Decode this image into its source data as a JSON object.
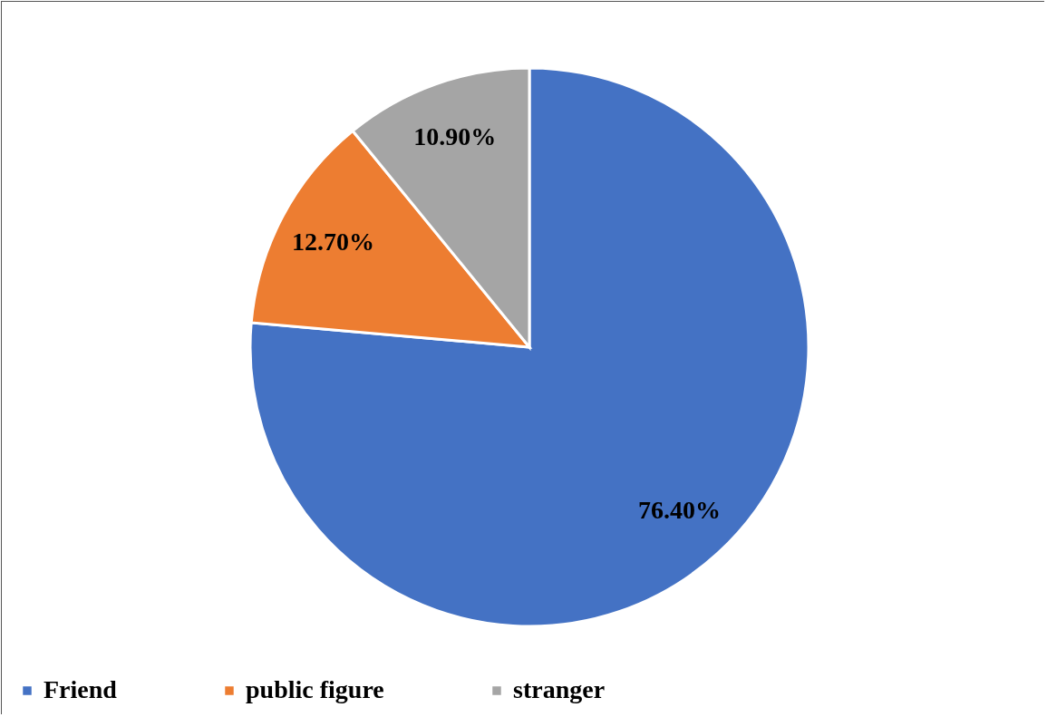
{
  "chart_data": {
    "type": "pie",
    "categories": [
      "Friend",
      "public figure",
      "stranger"
    ],
    "values": [
      76.4,
      12.7,
      10.9
    ],
    "colors": [
      "#4472c4",
      "#ed7d31",
      "#a5a5a5"
    ],
    "value_labels": [
      "76.40%",
      "12.70%",
      "10.90%"
    ],
    "legend": "bottom"
  }
}
